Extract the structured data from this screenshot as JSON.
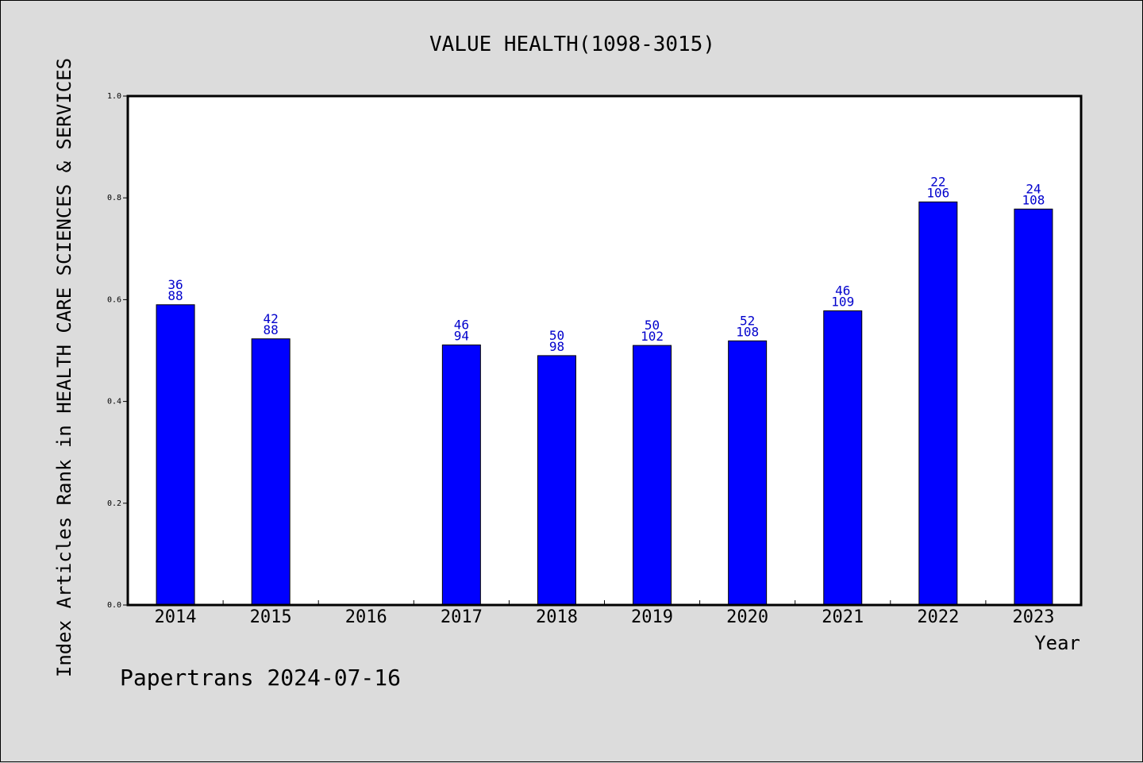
{
  "chart_data": {
    "type": "bar",
    "title": "VALUE HEALTH(1098-3015)",
    "xlabel": "Year",
    "ylabel": "Index Articles Rank in HEALTH CARE SCIENCES & SERVICES",
    "ylim": [
      0,
      1.0
    ],
    "yticks": [
      "0.0",
      "0.2",
      "0.4",
      "0.6",
      "0.8",
      "1.0"
    ],
    "categories": [
      "2014",
      "2015",
      "2016",
      "2017",
      "2018",
      "2019",
      "2020",
      "2021",
      "2022",
      "2023"
    ],
    "values": [
      0.59,
      0.523,
      null,
      0.511,
      0.49,
      0.51,
      0.519,
      0.578,
      0.792,
      0.778
    ],
    "labels_top": [
      "36",
      "42",
      "",
      "46",
      "50",
      "50",
      "52",
      "46",
      "22",
      "24"
    ],
    "labels_bottom": [
      "88",
      "88",
      "",
      "94",
      "98",
      "102",
      "108",
      "109",
      "106",
      "108"
    ],
    "bar_color": "#0000ff",
    "label_color": "#0000cc",
    "grid": false
  },
  "footer": "Papertrans 2024-07-16"
}
